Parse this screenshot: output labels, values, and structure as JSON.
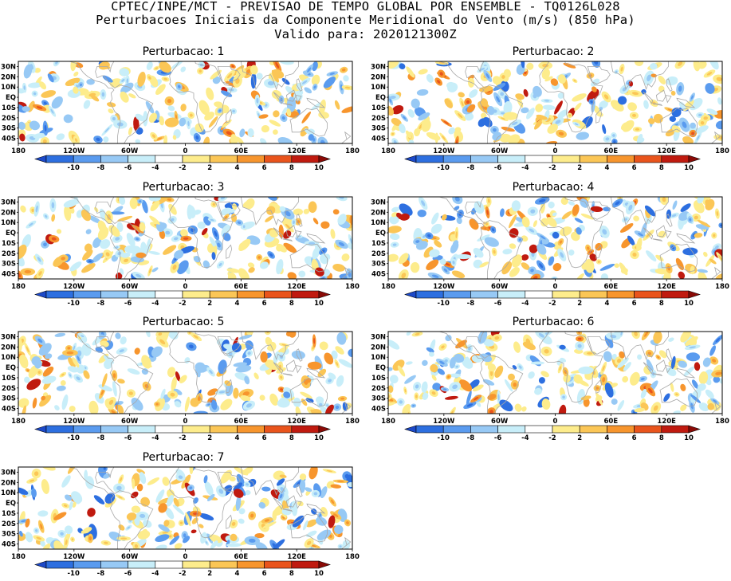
{
  "header": {
    "line1": "CPTEC/INPE/MCT - PREVISAO DE TEMPO GLOBAL POR ENSEMBLE - TQ0126L028",
    "line2": "Perturbacoes Iniciais da Componente Meridional do Vento (m/s) (850 hPa)",
    "line3": "Valido para: 2020121300Z"
  },
  "panels": [
    {
      "title": "Perturbacao: 1"
    },
    {
      "title": "Perturbacao: 2"
    },
    {
      "title": "Perturbacao: 3"
    },
    {
      "title": "Perturbacao: 4"
    },
    {
      "title": "Perturbacao: 5"
    },
    {
      "title": "Perturbacao: 6"
    },
    {
      "title": "Perturbacao: 7"
    }
  ],
  "lat_labels": [
    "30N",
    "20N",
    "10N",
    "EQ",
    "10S",
    "20S",
    "30S",
    "40S"
  ],
  "lon_labels": [
    "180",
    "120W",
    "60W",
    "0",
    "60E",
    "120E",
    "180"
  ],
  "colorbar": {
    "labels": [
      "-10",
      "-8",
      "-6",
      "-4",
      "-2",
      "2",
      "4",
      "6",
      "8",
      "10"
    ],
    "colors": [
      "#1c49c9",
      "#2d6fe0",
      "#5a9bef",
      "#97c9f5",
      "#c8eef9",
      "#ffffff",
      "#fdec8c",
      "#fbc656",
      "#f7952d",
      "#e9541c",
      "#c01a0f",
      "#8a0a06"
    ]
  }
}
